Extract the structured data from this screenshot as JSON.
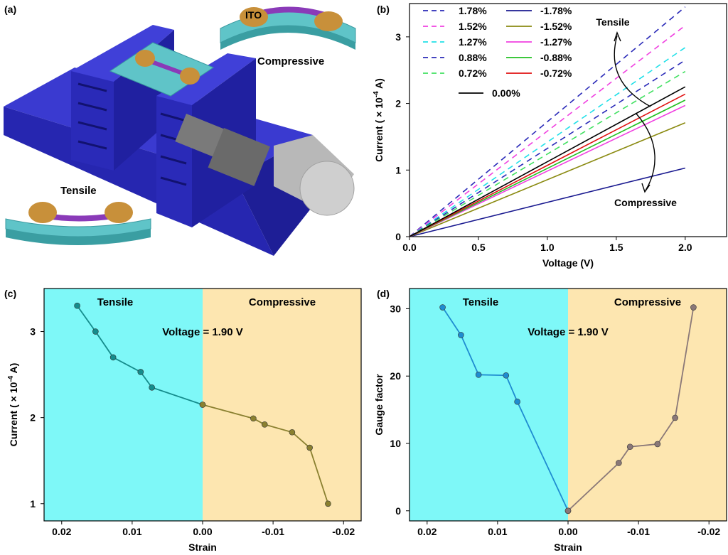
{
  "panels": {
    "a": {
      "label": "(a)",
      "ito_label": "ITO",
      "compressive_label": "Compressive",
      "tensile_label": "Tensile",
      "colors": {
        "block": "#3030c8",
        "block_dark": "#1a1a8a",
        "substrate": "#5fc4c8",
        "electrode": "#c8903a",
        "channel": "#8a3ab8",
        "cylinder": "#9a9a9a"
      }
    }
  },
  "chart_data": [
    {
      "panel": "(b)",
      "type": "line",
      "xlabel": "Voltage (V)",
      "ylabel": "Current ( × 10",
      "ylabel_exp": "-4",
      "ylabel_unit": " A)",
      "xlim": [
        0,
        2.3
      ],
      "ylim": [
        0,
        3.5
      ],
      "xticks": [
        0.0,
        0.5,
        1.0,
        1.5,
        2.0
      ],
      "xtick_labels": [
        "0.0",
        "0.5",
        "1.0",
        "1.5",
        "2.0"
      ],
      "yticks": [
        0,
        1,
        2,
        3
      ],
      "ytick_labels": [
        "0",
        "1",
        "2",
        "3"
      ],
      "annotations": {
        "tensile": "Tensile",
        "compressive": "Compressive"
      },
      "series": [
        {
          "name": "1.78%",
          "color": "#2a2ab8",
          "dash": true,
          "x": [
            0,
            2.0
          ],
          "y": [
            0,
            3.45
          ]
        },
        {
          "name": "1.52%",
          "color": "#f040e0",
          "dash": true,
          "x": [
            0,
            2.0
          ],
          "y": [
            0,
            3.17
          ]
        },
        {
          "name": "1.27%",
          "color": "#20e0e8",
          "dash": true,
          "x": [
            0,
            2.0
          ],
          "y": [
            0,
            2.84
          ]
        },
        {
          "name": "0.88%",
          "color": "#2a2ab8",
          "dash": true,
          "x": [
            0,
            2.0
          ],
          "y": [
            0,
            2.65
          ]
        },
        {
          "name": "0.72%",
          "color": "#40e060",
          "dash": true,
          "x": [
            0,
            2.0
          ],
          "y": [
            0,
            2.48
          ]
        },
        {
          "name": "-1.78%",
          "color": "#1a1a90",
          "dash": false,
          "x": [
            0,
            2.0
          ],
          "y": [
            0,
            1.03
          ]
        },
        {
          "name": "-1.52%",
          "color": "#8a8a10",
          "dash": false,
          "x": [
            0,
            2.0
          ],
          "y": [
            0,
            1.71
          ]
        },
        {
          "name": "-1.27%",
          "color": "#f040e0",
          "dash": false,
          "x": [
            0,
            2.0
          ],
          "y": [
            0,
            1.97
          ]
        },
        {
          "name": "-0.88%",
          "color": "#20c020",
          "dash": false,
          "x": [
            0,
            2.0
          ],
          "y": [
            0,
            2.05
          ]
        },
        {
          "name": "-0.72%",
          "color": "#e01010",
          "dash": false,
          "x": [
            0,
            2.0
          ],
          "y": [
            0,
            2.14
          ]
        },
        {
          "name": "0.00%",
          "color": "#000000",
          "dash": false,
          "x": [
            0,
            2.0
          ],
          "y": [
            0,
            2.25
          ]
        }
      ]
    },
    {
      "panel": "(c)",
      "type": "line",
      "xlabel": "Strain",
      "ylabel": "Current ( × 10",
      "ylabel_exp": "-4",
      "ylabel_unit": " A)",
      "xlim": [
        0.0225,
        -0.0225
      ],
      "ylim": [
        0.8,
        3.5
      ],
      "xticks": [
        0.02,
        0.01,
        0.0,
        -0.01,
        -0.02
      ],
      "xtick_labels": [
        "0.02",
        "0.01",
        "0.00",
        "-0.01",
        "-0.02"
      ],
      "yticks": [
        1,
        2,
        3
      ],
      "ytick_labels": [
        "1",
        "2",
        "3"
      ],
      "region_labels": {
        "tensile": "Tensile",
        "compressive": "Compressive"
      },
      "annotation": "Voltage = 1.90 V",
      "region_colors": {
        "tensile": "#7ef8f8",
        "compressive": "#fde6b0"
      },
      "series": [
        {
          "name": "Tensile",
          "color": "#158c8c",
          "x": [
            0.0178,
            0.0152,
            0.0127,
            0.0088,
            0.0072,
            0.0
          ],
          "y": [
            3.3,
            3.0,
            2.7,
            2.53,
            2.35,
            2.15
          ]
        },
        {
          "name": "Compressive",
          "color": "#8a8030",
          "x": [
            0.0,
            -0.0072,
            -0.0088,
            -0.0127,
            -0.0152,
            -0.0178
          ],
          "y": [
            2.15,
            1.99,
            1.92,
            1.83,
            1.65,
            1.0
          ]
        }
      ]
    },
    {
      "panel": "(d)",
      "type": "line",
      "xlabel": "Strain",
      "ylabel": "Gauge factor",
      "xlim": [
        0.0225,
        -0.0225
      ],
      "ylim": [
        -1.5,
        33
      ],
      "xticks": [
        0.02,
        0.01,
        0.0,
        -0.01,
        -0.02
      ],
      "xtick_labels": [
        "0.02",
        "0.01",
        "0.00",
        "-0.01",
        "-0.02"
      ],
      "yticks": [
        0,
        10,
        20,
        30
      ],
      "ytick_labels": [
        "0",
        "10",
        "20",
        "30"
      ],
      "region_labels": {
        "tensile": "Tensile",
        "compressive": "Compressive"
      },
      "annotation": "Voltage = 1.90 V",
      "region_colors": {
        "tensile": "#7ef8f8",
        "compressive": "#fde6b0"
      },
      "series": [
        {
          "name": "Tensile",
          "color": "#1f8cd0",
          "x": [
            0.0178,
            0.0152,
            0.0127,
            0.0088,
            0.0072,
            0.0
          ],
          "y": [
            30.2,
            26.1,
            20.2,
            20.1,
            16.2,
            0
          ]
        },
        {
          "name": "Compressive",
          "color": "#8a7878",
          "x": [
            0.0,
            -0.0072,
            -0.0088,
            -0.0127,
            -0.0152,
            -0.0178
          ],
          "y": [
            0,
            7.1,
            9.5,
            9.9,
            13.8,
            30.2
          ]
        }
      ]
    }
  ]
}
